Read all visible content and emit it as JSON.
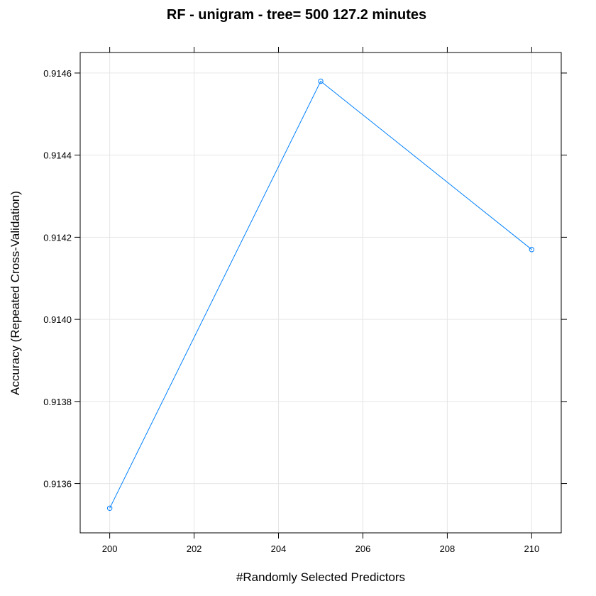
{
  "chart_data": {
    "type": "line",
    "title": "RF - unigram - tree= 500 127.2 minutes",
    "xlabel": "#Randomly Selected Predictors",
    "ylabel": "Accuracy (Repeated Cross-Validation)",
    "x": [
      200,
      205,
      210
    ],
    "series": [
      {
        "values": [
          0.91354,
          0.91458,
          0.91417
        ],
        "color": "#0080ff"
      }
    ],
    "xlim": [
      199.3,
      210.7
    ],
    "ylim": [
      0.91348,
      0.91465
    ],
    "xticks": [
      200,
      202,
      204,
      206,
      208,
      210
    ],
    "xtick_labels": [
      "200",
      "202",
      "204",
      "206",
      "208",
      "210"
    ],
    "yticks": [
      0.9136,
      0.9138,
      0.914,
      0.9142,
      0.9144,
      0.9146
    ],
    "ytick_labels": [
      "0.9136",
      "0.9138",
      "0.9140",
      "0.9142",
      "0.9144",
      "0.9146"
    ],
    "grid": true,
    "marker": "open-circle"
  }
}
